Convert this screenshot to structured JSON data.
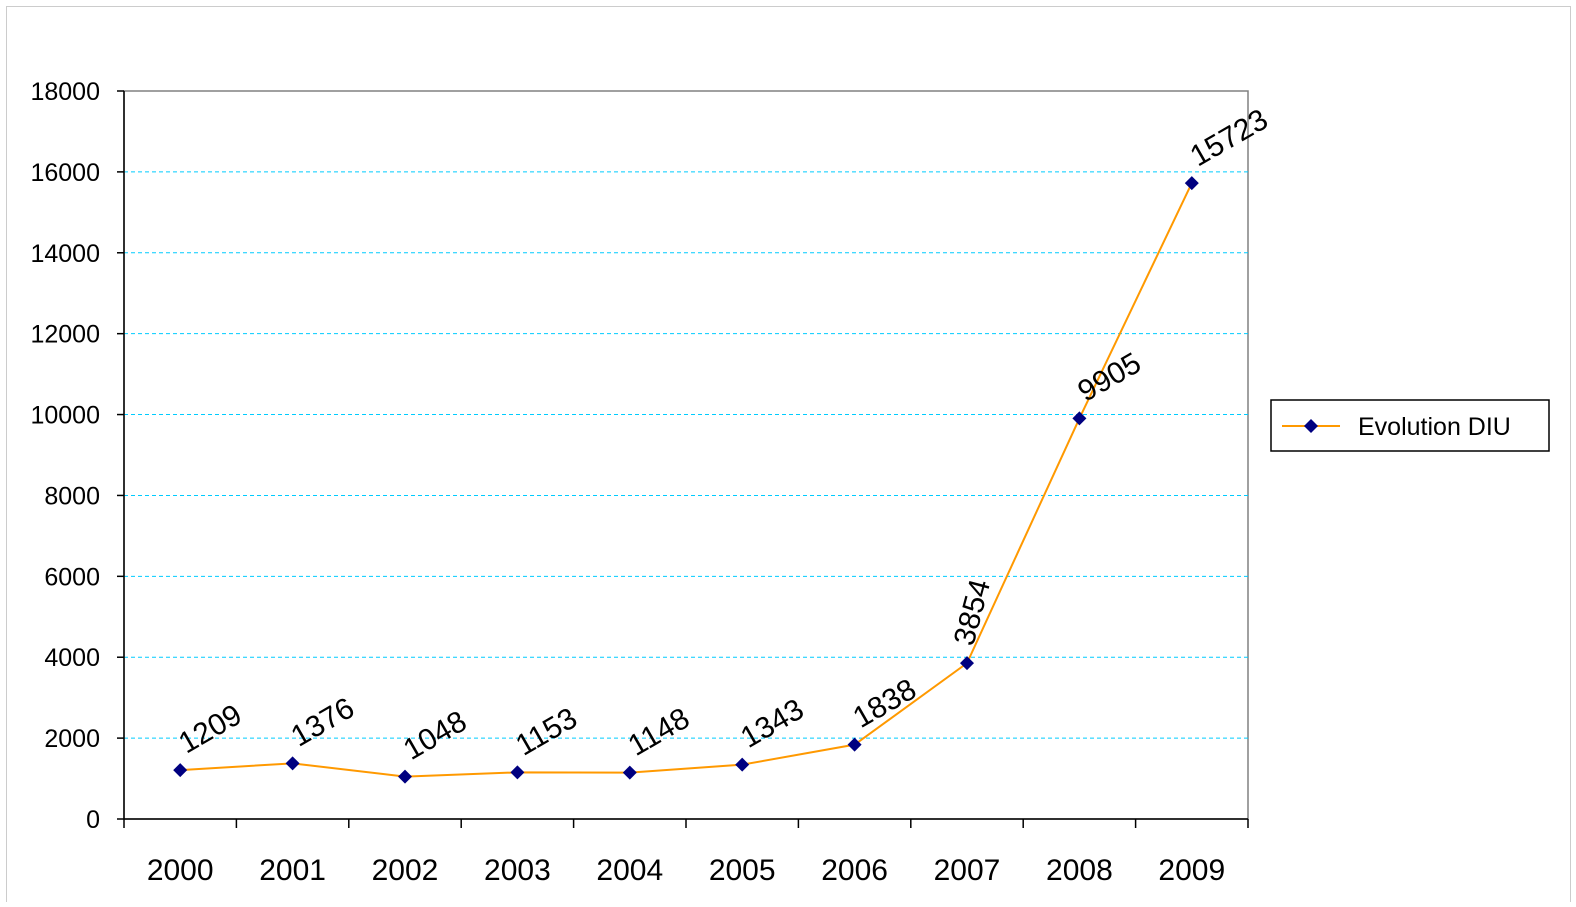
{
  "chart_data": {
    "type": "line",
    "title": "",
    "xlabel": "",
    "ylabel": "",
    "categories": [
      "2000",
      "2001",
      "2002",
      "2003",
      "2004",
      "2005",
      "2006",
      "2007",
      "2008",
      "2009"
    ],
    "series": [
      {
        "name": "Evolution DIU",
        "values": [
          1209,
          1376,
          1048,
          1153,
          1148,
          1343,
          1838,
          3854,
          9905,
          15723
        ],
        "data_labels": [
          "1209",
          "1376",
          "1048",
          "1153",
          "1148",
          "1343",
          "1838",
          "3854",
          "9905",
          "15723"
        ],
        "color": "#FF9900",
        "marker": "diamond",
        "marker_color": "#000080"
      }
    ],
    "ylim": [
      0,
      18000
    ],
    "y_ticks": [
      "0",
      "2000",
      "4000",
      "6000",
      "8000",
      "10000",
      "12000",
      "14000",
      "16000",
      "18000"
    ],
    "grid": "horizontal dashed",
    "grid_color": "#00CCFF",
    "legend_position": "right"
  }
}
